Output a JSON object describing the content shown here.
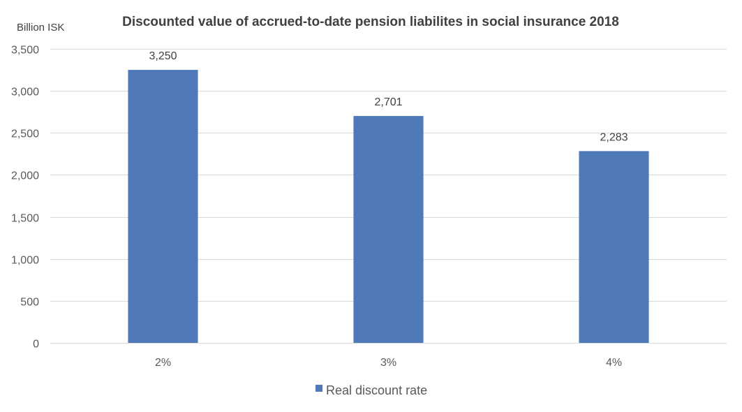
{
  "chart_data": {
    "type": "bar",
    "title": "Discounted value of accrued-to-date pension liabilites in social insurance 2018",
    "ylabel": "Billion ISK",
    "xlabel": "",
    "categories": [
      "2%",
      "3%",
      "4%"
    ],
    "series": [
      {
        "name": "Real discount rate",
        "values": [
          3250,
          2701,
          2283
        ],
        "value_labels": [
          "3,250",
          "2,701",
          "2,283"
        ],
        "color": "#4f79b8"
      }
    ],
    "ylim": [
      0,
      3500
    ],
    "yticks": [
      0,
      500,
      1000,
      1500,
      2000,
      2500,
      3000,
      3500
    ],
    "ytick_labels": [
      "0",
      "500",
      "1,000",
      "1,500",
      "2,000",
      "2,500",
      "3,000",
      "3,500"
    ],
    "grid": true,
    "legend_position": "bottom"
  }
}
